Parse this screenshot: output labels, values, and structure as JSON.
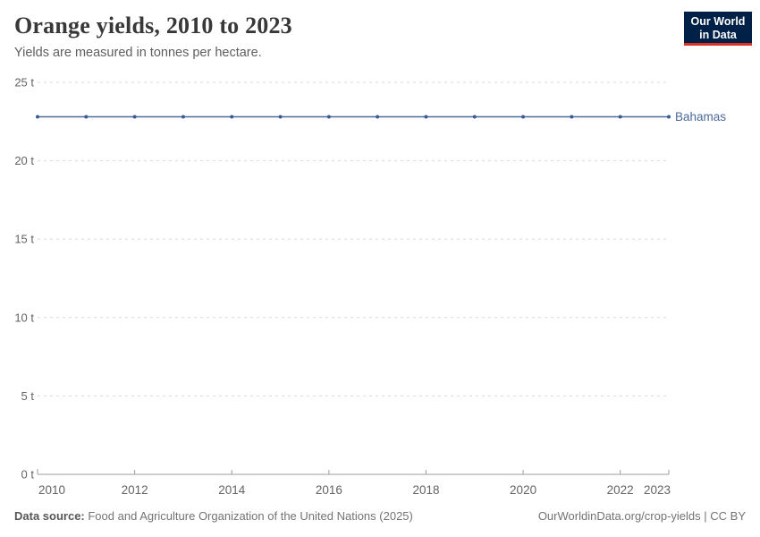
{
  "header": {
    "title": "Orange yields, 2010 to 2023",
    "subtitle": "Yields are measured in tonnes per hectare.",
    "logo": {
      "line1": "Our World",
      "line2": "in Data",
      "bg_color": "#002147",
      "accent_color": "#dc3224"
    }
  },
  "chart_data": {
    "type": "line",
    "title": "Orange yields, 2010 to 2023",
    "subtitle": "Yields are measured in tonnes per hectare.",
    "unit": "tonnes per hectare",
    "x": [
      2010,
      2011,
      2012,
      2013,
      2014,
      2015,
      2016,
      2017,
      2018,
      2019,
      2020,
      2021,
      2022,
      2023
    ],
    "series": [
      {
        "name": "Bahamas",
        "color": "#4c6a9c",
        "values": [
          22.8,
          22.8,
          22.8,
          22.8,
          22.8,
          22.8,
          22.8,
          22.8,
          22.8,
          22.8,
          22.8,
          22.8,
          22.8,
          22.8
        ]
      }
    ],
    "ylim": [
      0,
      25
    ],
    "yticks": [
      {
        "value": 0,
        "label": "0 t"
      },
      {
        "value": 5,
        "label": "5 t"
      },
      {
        "value": 10,
        "label": "10 t"
      },
      {
        "value": 15,
        "label": "15 t"
      },
      {
        "value": 20,
        "label": "20 t"
      },
      {
        "value": 25,
        "label": "25 t"
      }
    ],
    "xticks": [
      {
        "value": 2010,
        "label": "2010"
      },
      {
        "value": 2012,
        "label": "2012"
      },
      {
        "value": 2014,
        "label": "2014"
      },
      {
        "value": 2016,
        "label": "2016"
      },
      {
        "value": 2018,
        "label": "2018"
      },
      {
        "value": 2020,
        "label": "2020"
      },
      {
        "value": 2022,
        "label": "2022"
      },
      {
        "value": 2023,
        "label": "2023"
      }
    ],
    "grid": "horizontal-dashed",
    "legend_position": "end-of-line",
    "colors": {
      "gridline": "#dadada",
      "axis": "#9c9c9c",
      "tick_label": "#636363"
    }
  },
  "footer": {
    "source_label": "Data source:",
    "source_value": " Food and Agriculture Organization of the United Nations (2025)",
    "url": "OurWorldinData.org/crop-yields",
    "separator": " | ",
    "license": "CC BY"
  }
}
